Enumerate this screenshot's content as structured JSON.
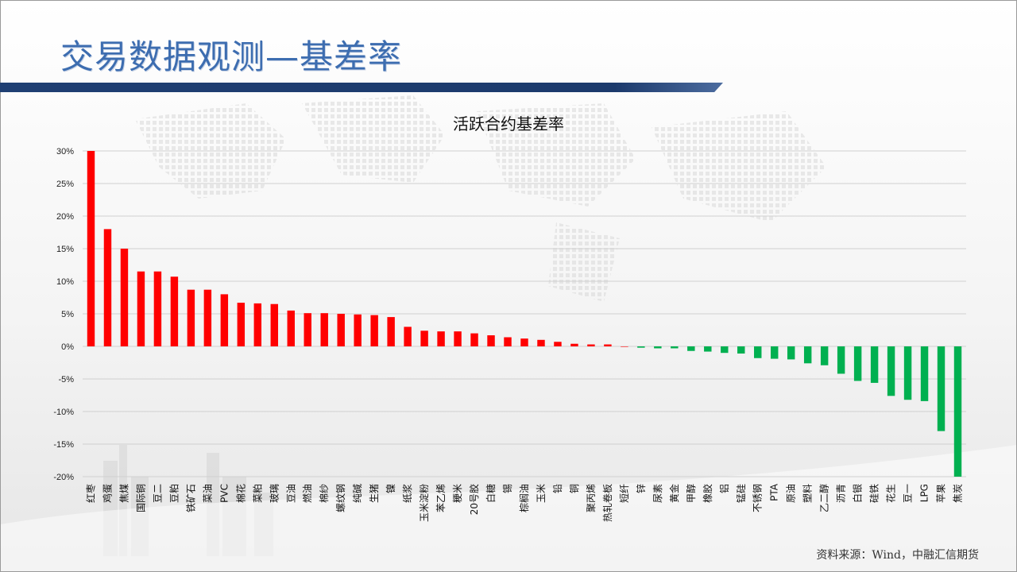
{
  "slide": {
    "title": "交易数据观测—基差率",
    "source": "资料来源：Wind，中融汇信期货"
  },
  "chart_data": {
    "type": "bar",
    "title": "活跃合约基差率",
    "xlabel": "",
    "ylabel": "",
    "ylim": [
      -0.2,
      0.3
    ],
    "yticks": [
      "30%",
      "25%",
      "20%",
      "15%",
      "10%",
      "5%",
      "0%",
      "-5%",
      "-10%",
      "-15%",
      "-20%"
    ],
    "grid": true,
    "positive_color": "#ff0000",
    "negative_color": "#00b050",
    "categories": [
      "红枣",
      "鸡蛋",
      "焦煤",
      "国际铜",
      "豆二",
      "豆粕",
      "铁矿石",
      "菜油",
      "PVC",
      "棉花",
      "菜粕",
      "玻璃",
      "豆油",
      "燃油",
      "棉纱",
      "螺纹钢",
      "纯碱",
      "生猪",
      "镍",
      "纸浆",
      "玉米淀粉",
      "苯乙烯",
      "粳米",
      "20号胶",
      "白糖",
      "锡",
      "棕榈油",
      "玉米",
      "铅",
      "铜",
      "聚丙烯",
      "热轧卷板",
      "短纤",
      "锌",
      "尿素",
      "黄金",
      "甲醇",
      "橡胶",
      "铝",
      "锰硅",
      "不锈钢",
      "PTA",
      "原油",
      "塑料",
      "乙二醇",
      "沥青",
      "白银",
      "硅铁",
      "花生",
      "豆一",
      "LPG",
      "苹果",
      "焦炭"
    ],
    "values": [
      30.0,
      18.0,
      15.0,
      11.5,
      11.5,
      10.7,
      8.7,
      8.7,
      8.0,
      6.7,
      6.6,
      6.5,
      5.5,
      5.1,
      5.1,
      5.0,
      4.9,
      4.8,
      4.5,
      3.0,
      2.4,
      2.3,
      2.3,
      2.0,
      1.7,
      1.4,
      1.2,
      1.0,
      0.7,
      0.4,
      0.3,
      0.3,
      0.0,
      -0.2,
      -0.3,
      -0.3,
      -0.7,
      -0.8,
      -1.0,
      -1.1,
      -1.8,
      -1.9,
      -2.0,
      -2.6,
      -2.9,
      -4.2,
      -5.3,
      -5.6,
      -7.6,
      -8.2,
      -8.4,
      -13.0,
      -20.0
    ]
  }
}
